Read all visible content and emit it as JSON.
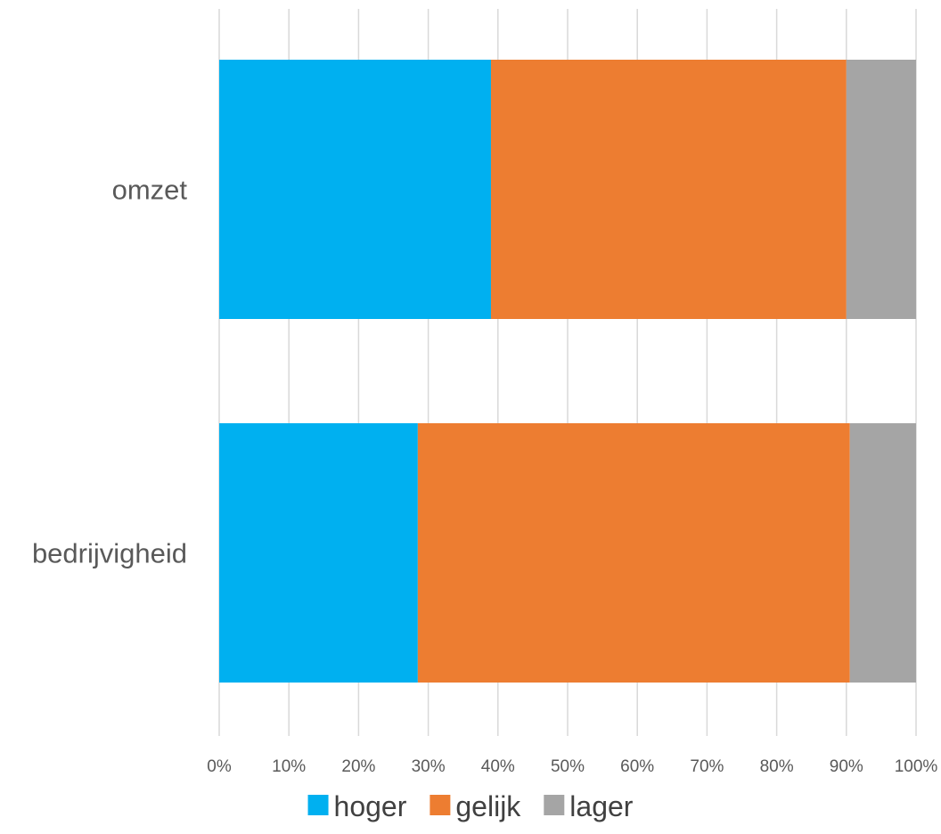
{
  "chart_data": {
    "type": "bar",
    "orientation": "horizontal",
    "stacked": "percent",
    "categories": [
      "omzet",
      "bedrijvigheid"
    ],
    "series": [
      {
        "name": "hoger",
        "values": [
          39,
          28.5
        ],
        "color": "#00B0F0"
      },
      {
        "name": "gelijk",
        "values": [
          51,
          62
        ],
        "color": "#ED7D31"
      },
      {
        "name": "lager",
        "values": [
          10,
          9.5
        ],
        "color": "#A5A5A5"
      }
    ],
    "xlim": [
      0,
      100
    ],
    "x_ticks": [
      "0%",
      "10%",
      "20%",
      "30%",
      "40%",
      "50%",
      "60%",
      "70%",
      "80%",
      "90%",
      "100%"
    ],
    "grid": "vertical",
    "legend_position": "bottom",
    "title": "",
    "xlabel": "",
    "ylabel": ""
  }
}
